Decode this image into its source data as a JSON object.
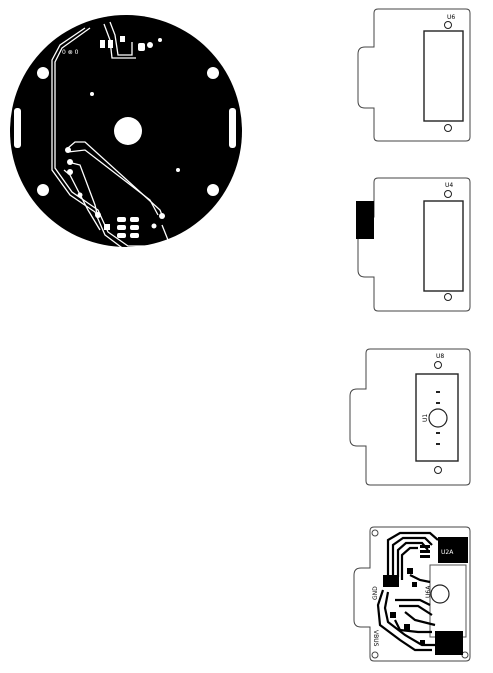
{
  "boards": {
    "round": {
      "marks": [
        "0 ⊗ 0"
      ]
    },
    "board1": {
      "designator": "U6"
    },
    "board2": {
      "designator": "U4"
    },
    "board3": {
      "designator": "U8",
      "center_label": "U1"
    },
    "board4": {
      "designator": "U2A",
      "center_label": "U6A",
      "side_label": "GND",
      "bottom_label": "VBUS"
    }
  },
  "colors": {
    "copper": "#000000",
    "outline": "#444444",
    "background": "#ffffff"
  }
}
